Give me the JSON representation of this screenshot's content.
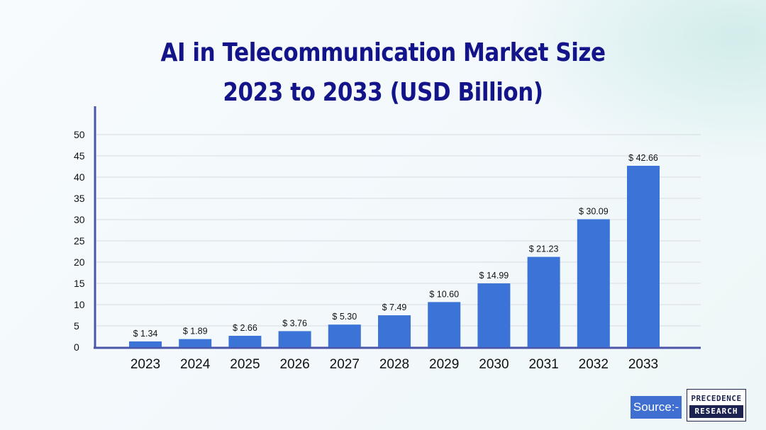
{
  "source_label": "Source:-",
  "logo": {
    "line1": "PRECEDENCE",
    "line2": "RESEARCH"
  },
  "colors": {
    "bar": "#3b74d6",
    "title": "#14148a",
    "axis": "#4b56a8"
  },
  "chart_data": {
    "type": "bar",
    "title": "AI in Telecommunication Market Size",
    "subtitle": "2023 to 2033 (USD Billion)",
    "categories": [
      "2023",
      "2024",
      "2025",
      "2026",
      "2027",
      "2028",
      "2029",
      "2030",
      "2031",
      "2032",
      "2033"
    ],
    "values": [
      1.34,
      1.89,
      2.66,
      3.76,
      5.3,
      7.49,
      10.6,
      14.99,
      21.23,
      30.09,
      42.66
    ],
    "data_labels": [
      "$ 1.34",
      "$ 1.89",
      "$ 2.66",
      "$ 3.76",
      "$ 5.30",
      "$ 7.49",
      "$ 10.60",
      "$ 14.99",
      "$ 21.23",
      "$ 30.09",
      "$ 42.66"
    ],
    "yticks": [
      "0",
      "5",
      "10",
      "15",
      "20",
      "25",
      "30",
      "35",
      "40",
      "45",
      "50"
    ],
    "ylim": [
      0,
      50
    ],
    "xlabel": "",
    "ylabel": "",
    "grid": true
  }
}
